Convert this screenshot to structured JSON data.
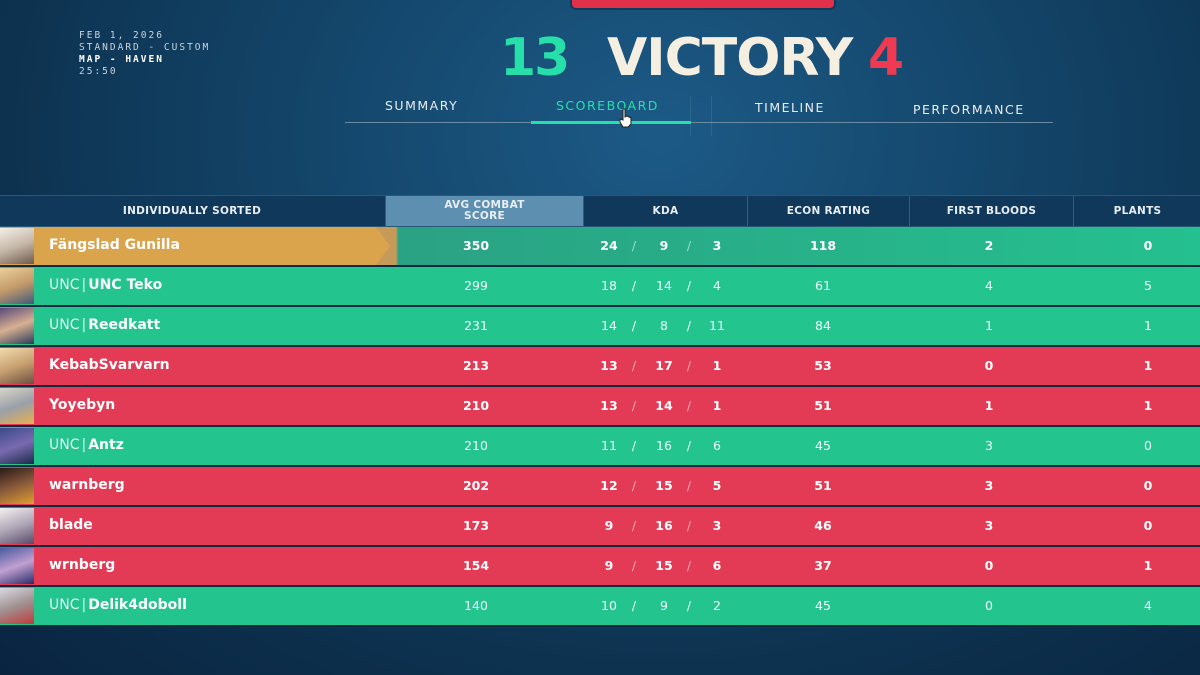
{
  "match": {
    "date": "FEB 1, 2026",
    "mode": "STANDARD - CUSTOM",
    "map": "MAP - HAVEN",
    "duration": "25:50",
    "team_score": "13",
    "result": "VICTORY",
    "enemy_score": "4"
  },
  "tabs": [
    {
      "label": "SUMMARY",
      "active": false
    },
    {
      "label": "SCOREBOARD",
      "active": true
    },
    {
      "label": "TIMELINE",
      "active": false
    },
    {
      "label": "PERFORMANCE",
      "active": false
    }
  ],
  "table": {
    "headers": {
      "sort": "INDIVIDUALLY SORTED",
      "acs_line1": "AVG COMBAT",
      "acs_line2": "SCORE",
      "kda": "KDA",
      "econ": "ECON RATING",
      "first_bloods": "FIRST BLOODS",
      "plants": "PLANTS"
    },
    "rows": [
      {
        "tag": "",
        "name": "Fängslad Gunilla",
        "acs": "350",
        "k": "24",
        "d": "9",
        "a": "3",
        "econ": "118",
        "fb": "2",
        "plants": "0"
      },
      {
        "tag": "UNC",
        "name": "UNC Teko",
        "acs": "299",
        "k": "18",
        "d": "14",
        "a": "4",
        "econ": "61",
        "fb": "4",
        "plants": "5"
      },
      {
        "tag": "UNC",
        "name": "Reedkatt",
        "acs": "231",
        "k": "14",
        "d": "8",
        "a": "11",
        "econ": "84",
        "fb": "1",
        "plants": "1"
      },
      {
        "tag": "",
        "name": "KebabSvarvarn",
        "acs": "213",
        "k": "13",
        "d": "17",
        "a": "1",
        "econ": "53",
        "fb": "0",
        "plants": "1"
      },
      {
        "tag": "",
        "name": "Yoyebyn",
        "acs": "210",
        "k": "13",
        "d": "14",
        "a": "1",
        "econ": "51",
        "fb": "1",
        "plants": "1"
      },
      {
        "tag": "UNC",
        "name": "Antz",
        "acs": "210",
        "k": "11",
        "d": "16",
        "a": "6",
        "econ": "45",
        "fb": "3",
        "plants": "0"
      },
      {
        "tag": "",
        "name": "warnberg",
        "acs": "202",
        "k": "12",
        "d": "15",
        "a": "5",
        "econ": "51",
        "fb": "3",
        "plants": "0"
      },
      {
        "tag": "",
        "name": "blade",
        "acs": "173",
        "k": "9",
        "d": "16",
        "a": "3",
        "econ": "46",
        "fb": "3",
        "plants": "0"
      },
      {
        "tag": "",
        "name": "wrnberg",
        "acs": "154",
        "k": "9",
        "d": "15",
        "a": "6",
        "econ": "37",
        "fb": "0",
        "plants": "1"
      },
      {
        "tag": "UNC",
        "name": "Delik4doboll",
        "acs": "140",
        "k": "10",
        "d": "9",
        "a": "2",
        "econ": "45",
        "fb": "0",
        "plants": "4"
      }
    ]
  },
  "colors": {
    "team": "#23c48e",
    "enemy": "#e33a55",
    "self": "#d9a44c",
    "accent": "#27e0a9"
  }
}
